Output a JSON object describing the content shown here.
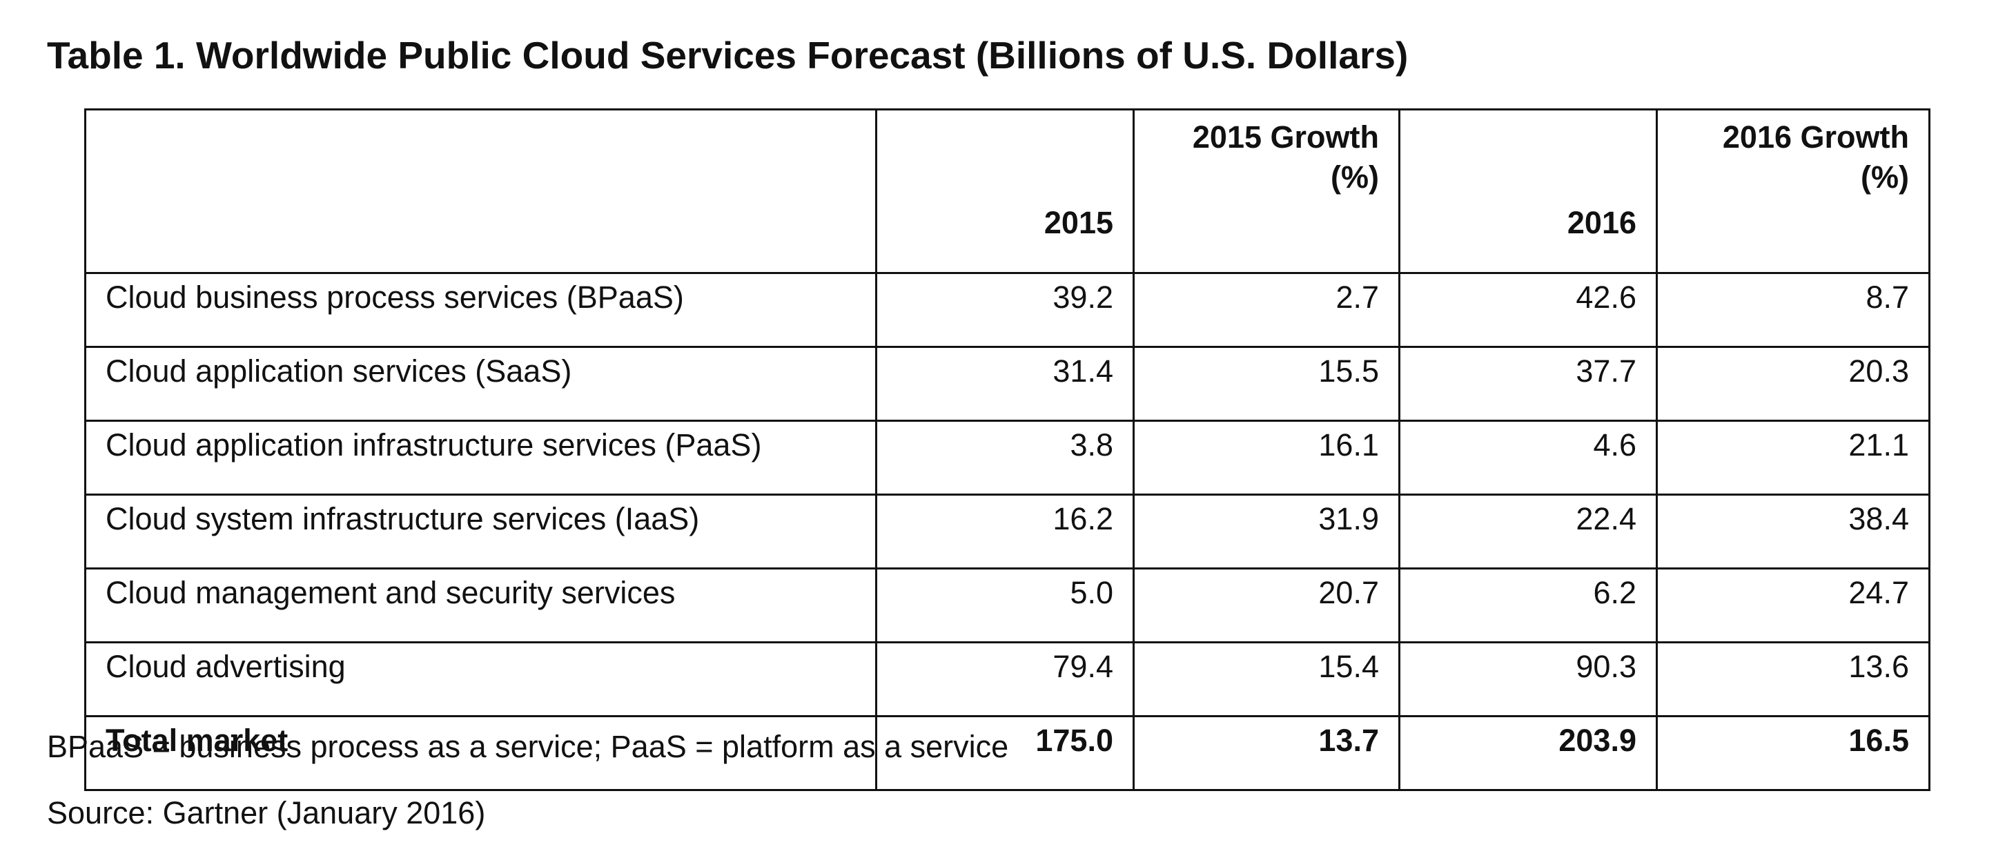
{
  "title": "Table 1. Worldwide Public Cloud Services Forecast (Billions of U.S. Dollars)",
  "table": {
    "headers": [
      "",
      "2015",
      "2015 Growth (%)",
      "2016",
      "2016 Growth (%)"
    ],
    "rows": [
      {
        "label": "Cloud business process services (BPaaS)",
        "v2015": "39.2",
        "g2015": "2.7",
        "v2016": "42.6",
        "g2016": "8.7"
      },
      {
        "label": "Cloud application services (SaaS)",
        "v2015": "31.4",
        "g2015": "15.5",
        "v2016": "37.7",
        "g2016": "20.3"
      },
      {
        "label": "Cloud application infrastructure services (PaaS)",
        "v2015": "3.8",
        "g2015": "16.1",
        "v2016": "4.6",
        "g2016": "21.1"
      },
      {
        "label": "Cloud system infrastructure services (IaaS)",
        "v2015": "16.2",
        "g2015": "31.9",
        "v2016": "22.4",
        "g2016": "38.4"
      },
      {
        "label": "Cloud management and security services",
        "v2015": "5.0",
        "g2015": "20.7",
        "v2016": "6.2",
        "g2016": "24.7"
      },
      {
        "label": "Cloud advertising",
        "v2015": "79.4",
        "g2015": "15.4",
        "v2016": "90.3",
        "g2016": "13.6"
      },
      {
        "label": "Total market",
        "v2015": "175.0",
        "g2015": "13.7",
        "v2016": "203.9",
        "g2016": "16.5"
      }
    ]
  },
  "footnote": "BPaaS = business process as a service; PaaS = platform as a service",
  "source": "Source: Gartner (January 2016)"
}
